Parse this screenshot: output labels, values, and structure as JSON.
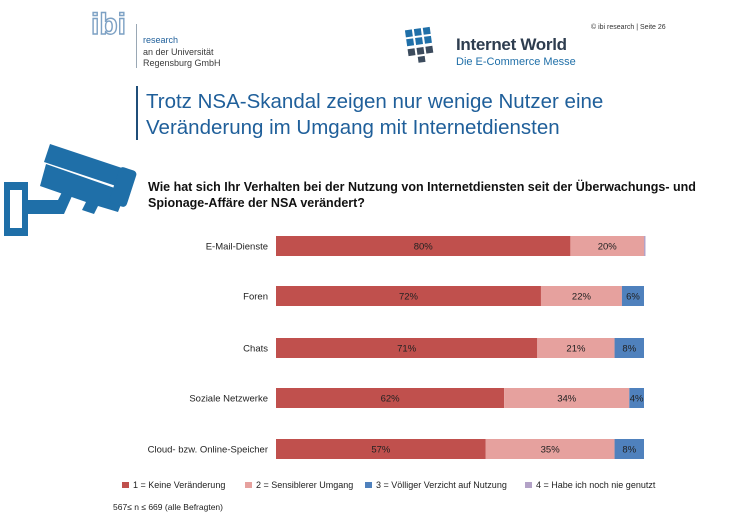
{
  "header": {
    "ibi_logo_text": "ibi",
    "ibi_lines": [
      "research",
      "an der Universität",
      "Regensburg GmbH"
    ],
    "iw_title": "Internet World",
    "iw_subtitle": "Die E-Commerce Messe",
    "copyright": "© ibi research | Seite 26"
  },
  "slide_title": [
    "Trotz NSA-Skandal zeigen nur wenige Nutzer eine",
    "Veränderung im Umgang mit Internetdiensten"
  ],
  "question": "Wie hat sich Ihr Verhalten bei der Nutzung von Internetdiensten seit der Überwachungs- und Spionage-Affäre der NSA verändert?",
  "footnote": "567≤ n ≤ 669 (alle Befragten)",
  "chart_data": {
    "type": "bar",
    "orientation": "horizontal",
    "stacked": true,
    "categories": [
      "E-Mail-Dienste",
      "Foren",
      "Chats",
      "Soziale Netzwerke",
      "Cloud- bzw. Online-Speicher"
    ],
    "series": [
      {
        "name": "1 = Keine Veränderung",
        "color": "#c0504d",
        "values": [
          80,
          72,
          71,
          62,
          57
        ],
        "labels": [
          "80%",
          "72%",
          "71%",
          "62%",
          "57%"
        ]
      },
      {
        "name": "2 = Sensiblerer Umgang",
        "color": "#e6a19e",
        "values": [
          20,
          22,
          21,
          34,
          35
        ],
        "labels": [
          "20%",
          "22%",
          "21%",
          "34%",
          "35%"
        ]
      },
      {
        "name": "3 = Völliger Verzicht auf Nutzung",
        "color": "#4f81bd",
        "values": [
          0,
          6,
          8,
          4,
          8
        ],
        "labels": [
          "",
          "6%",
          "8%",
          "4%",
          "8%"
        ]
      },
      {
        "name": "4 = Habe ich noch nie genutzt",
        "color": "#b3a2c7",
        "values": [
          0.4,
          0,
          0,
          0,
          0
        ],
        "labels": [
          "",
          "",
          "",
          "",
          ""
        ]
      }
    ],
    "xlim": [
      0,
      100
    ],
    "legend_position": "bottom"
  }
}
